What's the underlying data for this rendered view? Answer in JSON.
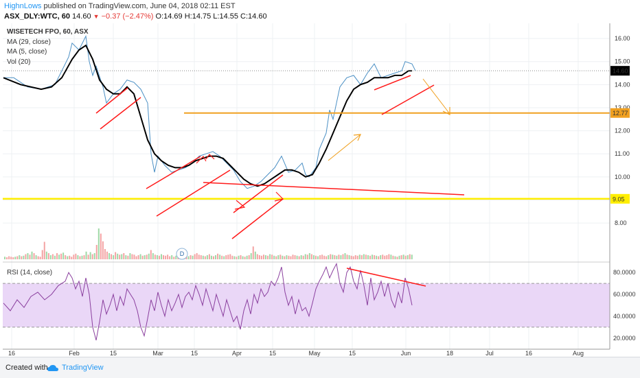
{
  "header": {
    "author": "HighnLows",
    "published_text": "published on TradingView.com, June 04, 2018 02:11 EST",
    "symbol_line": "ASX_DLY:WTC, 60",
    "last": "14.60",
    "down_arrow": "▼",
    "change": "−0.37 (−2.47%)",
    "ohlc": "O:14.69 H:14.75 L:14.55 C:14.60"
  },
  "indicators": {
    "title": "WISETECH FPO, 60, ASX",
    "ma29": "MA (29, close)",
    "ma5": "MA (5, close)",
    "vol": "Vol (20)",
    "rsi": "RSI (14, close)"
  },
  "event_marker": "D",
  "footer": {
    "created_with": "Created with",
    "brand": "TradingView"
  },
  "colors": {
    "price_line": "#4a8fc4",
    "ma": "#000000",
    "trend_red": "#ff1a1a",
    "orange": "#f0a020",
    "yellow": "#ffee00",
    "rsi_line": "#8a3f9e",
    "rsi_band": "#ead7f7"
  },
  "chart_data": [
    {
      "type": "line",
      "title": "WISETECH FPO, 60, ASX",
      "x_tick_labels": [
        "16",
        "Feb",
        "15",
        "Mar",
        "15",
        "Apr",
        "15",
        "May",
        "15",
        "Jun",
        "18",
        "Jul",
        "16",
        "Aug"
      ],
      "y_tick_labels": [
        "8.00",
        "9.00",
        "10.00",
        "11.00",
        "12.00",
        "13.00",
        "14.00",
        "15.00",
        "16.00"
      ],
      "ylim": [
        7.2,
        16.3
      ],
      "price_labels": [
        "14.60",
        "12.77",
        "9.05"
      ],
      "series": [
        {
          "values": [
            [
              1,
              14.3
            ],
            [
              4,
              14.3
            ],
            [
              8,
              13.9
            ],
            [
              12,
              13.8
            ],
            [
              16,
              14.0
            ],
            [
              18,
              14.6
            ],
            [
              20,
              15.2
            ],
            [
              21,
              15.8
            ],
            [
              23,
              15.5
            ],
            [
              25,
              16.1
            ],
            [
              26,
              15.0
            ],
            [
              27,
              14.4
            ],
            [
              28,
              14.8
            ],
            [
              30,
              13.9
            ],
            [
              31,
              13.2
            ],
            [
              33,
              13.6
            ],
            [
              35,
              13.8
            ],
            [
              37,
              14.2
            ],
            [
              39,
              14.1
            ],
            [
              41,
              13.8
            ],
            [
              43,
              13.2
            ],
            [
              44,
              11.0
            ],
            [
              45,
              10.2
            ],
            [
              46,
              10.9
            ],
            [
              48,
              10.5
            ],
            [
              50,
              10.2
            ],
            [
              52,
              10.3
            ],
            [
              54,
              10.4
            ],
            [
              56,
              10.6
            ],
            [
              58,
              10.9
            ],
            [
              60,
              11.0
            ],
            [
              62,
              11.1
            ],
            [
              64,
              10.9
            ],
            [
              66,
              10.6
            ],
            [
              68,
              10.3
            ],
            [
              70,
              9.8
            ],
            [
              72,
              9.5
            ],
            [
              74,
              9.6
            ],
            [
              76,
              9.8
            ],
            [
              78,
              10.1
            ],
            [
              80,
              10.4
            ],
            [
              82,
              10.9
            ],
            [
              84,
              10.2
            ],
            [
              86,
              10.3
            ],
            [
              88,
              10.6
            ],
            [
              89,
              10.1
            ],
            [
              90,
              10.0
            ],
            [
              92,
              10.4
            ],
            [
              93,
              11.2
            ],
            [
              95,
              11.9
            ],
            [
              96,
              12.9
            ],
            [
              97,
              12.5
            ],
            [
              98,
              13.2
            ],
            [
              99,
              13.9
            ],
            [
              101,
              14.3
            ],
            [
              103,
              14.4
            ],
            [
              105,
              14.0
            ],
            [
              107,
              14.5
            ],
            [
              109,
              14.9
            ],
            [
              111,
              14.3
            ],
            [
              113,
              14.4
            ],
            [
              115,
              14.5
            ],
            [
              117,
              14.6
            ],
            [
              118,
              15.0
            ],
            [
              120,
              14.9
            ],
            [
              121,
              14.6
            ]
          ]
        },
        {
          "name": "MA (29, close)",
          "values": [
            [
              1,
              14.3
            ],
            [
              6,
              14.0
            ],
            [
              12,
              13.8
            ],
            [
              15,
              13.9
            ],
            [
              18,
              14.3
            ],
            [
              21,
              15.1
            ],
            [
              23,
              15.5
            ],
            [
              25,
              15.7
            ],
            [
              27,
              15.1
            ],
            [
              29,
              14.2
            ],
            [
              31,
              13.8
            ],
            [
              33,
              13.6
            ],
            [
              35,
              13.6
            ],
            [
              37,
              13.9
            ],
            [
              39,
              13.6
            ],
            [
              41,
              12.6
            ],
            [
              43,
              11.6
            ],
            [
              45,
              11.0
            ],
            [
              47,
              10.7
            ],
            [
              49,
              10.5
            ],
            [
              51,
              10.4
            ],
            [
              53,
              10.4
            ],
            [
              55,
              10.5
            ],
            [
              57,
              10.7
            ],
            [
              59,
              10.8
            ],
            [
              61,
              10.9
            ],
            [
              63,
              10.9
            ],
            [
              65,
              10.8
            ],
            [
              67,
              10.5
            ],
            [
              69,
              10.2
            ],
            [
              71,
              9.9
            ],
            [
              73,
              9.7
            ],
            [
              75,
              9.6
            ],
            [
              77,
              9.7
            ],
            [
              79,
              9.9
            ],
            [
              81,
              10.1
            ],
            [
              83,
              10.3
            ],
            [
              85,
              10.3
            ],
            [
              87,
              10.2
            ],
            [
              89,
              10.0
            ],
            [
              91,
              10.1
            ],
            [
              93,
              10.6
            ],
            [
              95,
              11.2
            ],
            [
              97,
              11.9
            ],
            [
              99,
              12.6
            ],
            [
              101,
              13.3
            ],
            [
              103,
              13.8
            ],
            [
              105,
              14.0
            ],
            [
              107,
              14.1
            ],
            [
              109,
              14.3
            ],
            [
              111,
              14.3
            ],
            [
              113,
              14.3
            ],
            [
              115,
              14.4
            ],
            [
              117,
              14.4
            ],
            [
              119,
              14.6
            ],
            [
              120,
              14.6
            ]
          ]
        }
      ]
    },
    {
      "type": "bar",
      "title": "Vol (20)",
      "values": [
        0.05,
        0.04,
        0.06,
        0.05,
        0.04,
        0.05,
        0.06,
        0.08,
        0.06,
        0.07,
        0.1,
        0.12,
        0.09,
        0.15,
        0.12,
        0.08,
        0.06,
        0.05,
        0.18,
        0.34,
        0.15,
        0.12,
        0.08,
        0.1,
        0.07,
        0.12,
        0.09,
        0.11,
        0.13,
        0.08,
        0.06,
        0.07,
        0.05,
        0.09,
        0.11,
        0.08,
        0.06,
        0.07,
        0.08,
        0.15,
        0.09,
        0.14,
        0.1,
        0.12,
        0.28,
        0.6,
        0.5,
        0.35,
        0.2,
        0.15,
        0.12,
        0.1,
        0.08,
        0.14,
        0.11,
        0.09,
        0.1,
        0.12,
        0.08,
        0.07,
        0.12,
        0.1,
        0.09,
        0.06,
        0.08,
        0.1,
        0.07,
        0.08,
        0.09,
        0.11,
        0.18,
        0.12,
        0.09,
        0.08,
        0.07,
        0.1,
        0.08,
        0.07,
        0.09,
        0.06,
        0.08,
        0.05,
        0.07,
        0.09,
        0.08,
        0.06,
        0.05,
        0.07,
        0.06,
        0.08,
        0.07,
        0.1,
        0.12,
        0.09,
        0.08,
        0.07,
        0.06,
        0.08,
        0.1,
        0.07,
        0.06,
        0.08,
        0.11,
        0.09,
        0.07,
        0.06,
        0.08,
        0.09,
        0.1,
        0.07,
        0.06,
        0.05,
        0.07,
        0.08,
        0.06,
        0.05,
        0.07,
        0.08,
        0.12,
        0.25,
        0.15,
        0.1,
        0.08,
        0.07,
        0.09,
        0.08,
        0.07,
        0.1,
        0.09,
        0.07,
        0.06,
        0.08,
        0.09,
        0.07,
        0.06,
        0.08,
        0.07,
        0.06,
        0.09,
        0.08,
        0.07,
        0.06,
        0.08,
        0.07,
        0.1,
        0.09,
        0.12,
        0.1,
        0.08,
        0.07,
        0.06,
        0.08,
        0.09,
        0.07,
        0.06,
        0.08,
        0.1,
        0.09,
        0.08,
        0.07,
        0.09,
        0.08,
        0.1,
        0.12,
        0.09,
        0.08,
        0.07,
        0.06,
        0.08,
        0.07,
        0.09,
        0.08,
        0.1,
        0.09,
        0.08,
        0.07,
        0.09,
        0.08,
        0.07,
        0.06,
        0.08,
        0.09,
        0.07,
        0.08,
        0.1,
        0.09,
        0.07,
        0.06,
        0.05,
        0.07,
        0.08,
        0.09,
        0.07,
        0.08,
        0.1,
        0.09
      ]
    },
    {
      "type": "line",
      "title": "RSI (14, close)",
      "y_tick_labels": [
        "20.0000",
        "40.0000",
        "60.0000",
        "80.0000"
      ],
      "ylim": [
        13,
        87
      ],
      "bands": [
        30,
        70
      ],
      "series": [
        {
          "values": [
            [
              1,
              52
            ],
            [
              3,
              45
            ],
            [
              5,
              55
            ],
            [
              7,
              48
            ],
            [
              9,
              58
            ],
            [
              11,
              62
            ],
            [
              13,
              55
            ],
            [
              15,
              60
            ],
            [
              17,
              68
            ],
            [
              19,
              72
            ],
            [
              20,
              80
            ],
            [
              21,
              75
            ],
            [
              22,
              65
            ],
            [
              23,
              72
            ],
            [
              24,
              58
            ],
            [
              25,
              75
            ],
            [
              26,
              60
            ],
            [
              27,
              30
            ],
            [
              28,
              18
            ],
            [
              29,
              35
            ],
            [
              30,
              55
            ],
            [
              31,
              42
            ],
            [
              32,
              50
            ],
            [
              33,
              60
            ],
            [
              34,
              45
            ],
            [
              35,
              58
            ],
            [
              36,
              50
            ],
            [
              37,
              65
            ],
            [
              38,
              60
            ],
            [
              39,
              55
            ],
            [
              40,
              45
            ],
            [
              41,
              30
            ],
            [
              42,
              22
            ],
            [
              43,
              38
            ],
            [
              44,
              55
            ],
            [
              45,
              45
            ],
            [
              46,
              62
            ],
            [
              47,
              50
            ],
            [
              48,
              40
            ],
            [
              49,
              55
            ],
            [
              50,
              45
            ],
            [
              51,
              52
            ],
            [
              52,
              60
            ],
            [
              53,
              48
            ],
            [
              54,
              58
            ],
            [
              55,
              62
            ],
            [
              56,
              55
            ],
            [
              57,
              68
            ],
            [
              58,
              60
            ],
            [
              59,
              50
            ],
            [
              60,
              65
            ],
            [
              61,
              55
            ],
            [
              62,
              45
            ],
            [
              63,
              60
            ],
            [
              64,
              50
            ],
            [
              65,
              40
            ],
            [
              66,
              55
            ],
            [
              67,
              45
            ],
            [
              68,
              35
            ],
            [
              69,
              40
            ],
            [
              70,
              28
            ],
            [
              71,
              45
            ],
            [
              72,
              55
            ],
            [
              73,
              42
            ],
            [
              74,
              60
            ],
            [
              75,
              52
            ],
            [
              76,
              65
            ],
            [
              77,
              58
            ],
            [
              78,
              62
            ],
            [
              79,
              72
            ],
            [
              80,
              68
            ],
            [
              81,
              75
            ],
            [
              82,
              85
            ],
            [
              83,
              62
            ],
            [
              84,
              50
            ],
            [
              85,
              58
            ],
            [
              86,
              42
            ],
            [
              87,
              55
            ],
            [
              88,
              45
            ],
            [
              89,
              48
            ],
            [
              90,
              40
            ],
            [
              91,
              52
            ],
            [
              92,
              65
            ],
            [
              93,
              72
            ],
            [
              94,
              78
            ],
            [
              95,
              85
            ],
            [
              96,
              75
            ],
            [
              97,
              82
            ],
            [
              98,
              88
            ],
            [
              99,
              70
            ],
            [
              100,
              62
            ],
            [
              101,
              80
            ],
            [
              102,
              85
            ],
            [
              103,
              72
            ],
            [
              104,
              65
            ],
            [
              105,
              82
            ],
            [
              106,
              68
            ],
            [
              107,
              50
            ],
            [
              108,
              75
            ],
            [
              109,
              55
            ],
            [
              110,
              62
            ],
            [
              111,
              72
            ],
            [
              112,
              58
            ],
            [
              113,
              70
            ],
            [
              114,
              55
            ],
            [
              115,
              48
            ],
            [
              116,
              62
            ],
            [
              117,
              52
            ],
            [
              118,
              75
            ],
            [
              119,
              65
            ],
            [
              120,
              50
            ]
          ]
        }
      ]
    }
  ]
}
